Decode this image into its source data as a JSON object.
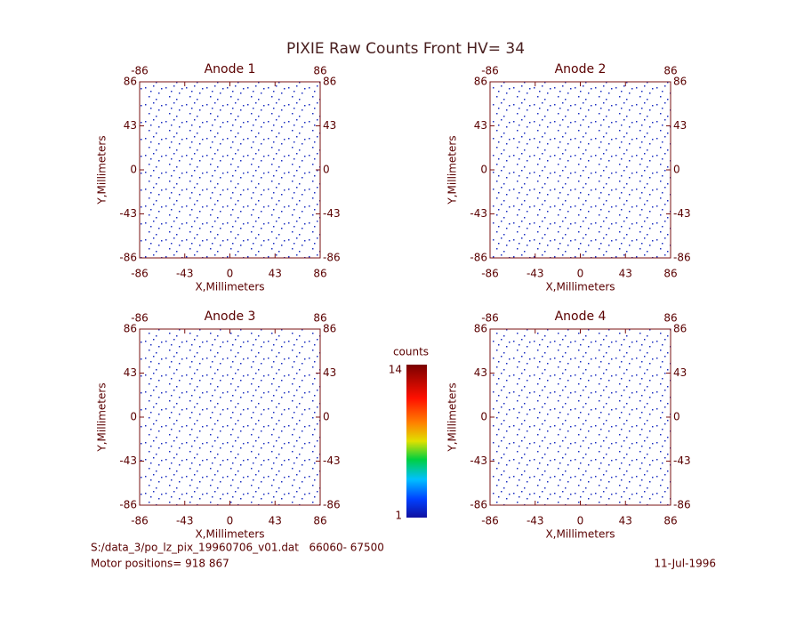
{
  "title": "PIXIE Raw Counts Front HV= 34",
  "chart_data": [
    {
      "type": "heatmap",
      "title": "Anode 1",
      "xlabel": "X,Millimeters",
      "ylabel": "Y,Millimeters",
      "xlim": [
        -86,
        86
      ],
      "ylim": [
        -86,
        86
      ],
      "xticks": [
        -86,
        -43,
        0,
        43,
        86
      ],
      "yticks": [
        -86,
        -43,
        0,
        43,
        86
      ]
    },
    {
      "type": "heatmap",
      "title": "Anode 2",
      "xlabel": "X,Millimeters",
      "ylabel": "Y,Millimeters",
      "xlim": [
        -86,
        86
      ],
      "ylim": [
        -86,
        86
      ],
      "xticks": [
        -86,
        -43,
        0,
        43,
        86
      ],
      "yticks": [
        -86,
        -43,
        0,
        43,
        86
      ]
    },
    {
      "type": "heatmap",
      "title": "Anode 3",
      "xlabel": "X,Millimeters",
      "ylabel": "Y,Millimeters",
      "xlim": [
        -86,
        86
      ],
      "ylim": [
        -86,
        86
      ],
      "xticks": [
        -86,
        -43,
        0,
        43,
        86
      ],
      "yticks": [
        -86,
        -43,
        0,
        43,
        86
      ]
    },
    {
      "type": "heatmap",
      "title": "Anode 4",
      "xlabel": "X,Millimeters",
      "ylabel": "Y,Millimeters",
      "xlim": [
        -86,
        86
      ],
      "ylim": [
        -86,
        86
      ],
      "xticks": [
        -86,
        -43,
        0,
        43,
        86
      ],
      "yticks": [
        -86,
        -43,
        0,
        43,
        86
      ]
    }
  ],
  "colorbar": {
    "label": "counts",
    "lim": [
      1,
      14
    ],
    "ticks": [
      1,
      14
    ]
  },
  "footer": {
    "file": "S:/data_3/po_lz_pix_19960706_v01.dat   66060- 67500",
    "motor": "Motor positions= 918 867",
    "date": "11-Jul-1996"
  }
}
